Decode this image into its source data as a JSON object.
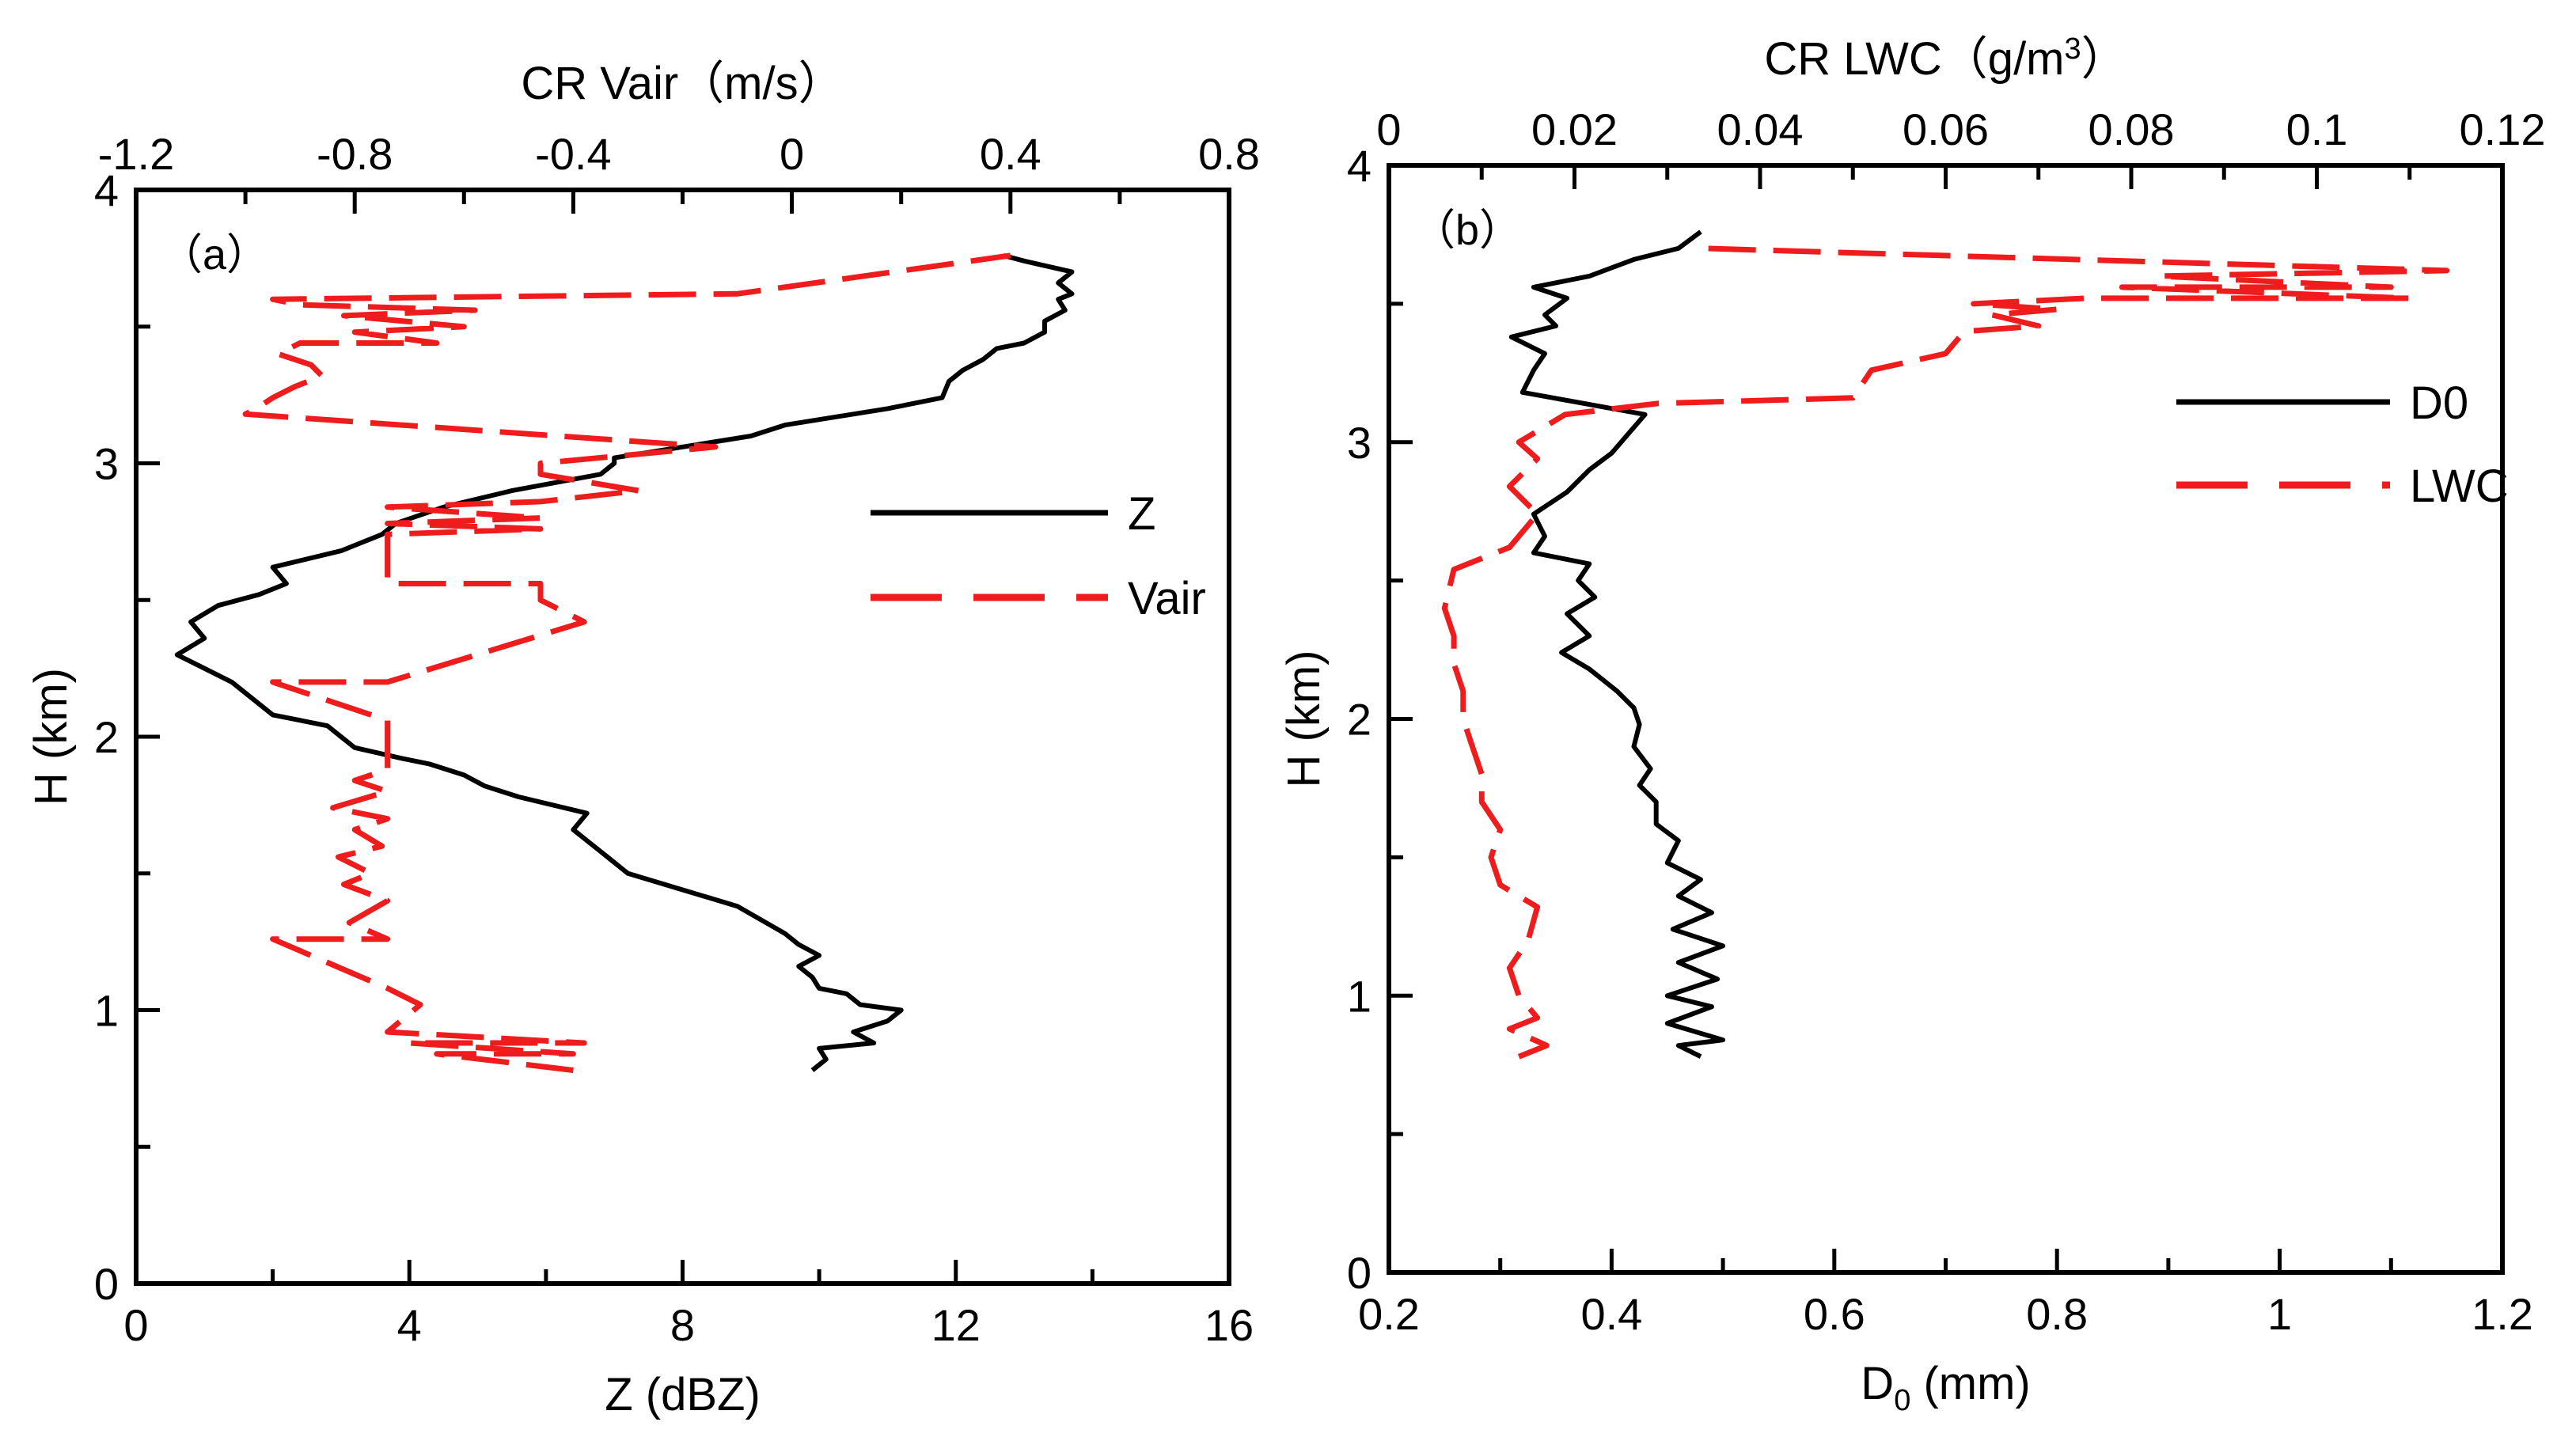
{
  "figure": {
    "panels": 2
  },
  "chart_data": [
    {
      "type": "line",
      "panel_label": "（a）",
      "ylabel": "H (km)",
      "ylim": [
        0,
        4
      ],
      "yticks": [
        "0",
        "1",
        "2",
        "3",
        "4"
      ],
      "bottom_axis": {
        "label": "Z (dBZ)",
        "lim": [
          0,
          16
        ],
        "ticks": [
          "0",
          "4",
          "8",
          "12",
          "16"
        ]
      },
      "top_axis": {
        "label": "CR  Vair（m/s）",
        "lim": [
          -1.2,
          0.8
        ],
        "ticks": [
          "-1.2",
          "-0.8",
          "-0.4",
          "0",
          "0.4",
          "0.8"
        ]
      },
      "legend": {
        "position": "right-middle"
      },
      "series": [
        {
          "name": "Z",
          "axis": "bottom",
          "color": "#000000",
          "style": "solid",
          "x": [
            9.9,
            10.1,
            10.0,
            10.8,
            10.5,
            11.0,
            11.2,
            10.6,
            10.4,
            10.0,
            9.9,
            9.7,
            10.0,
            9.7,
            9.5,
            8.8,
            7.2,
            6.9,
            6.6,
            6.4,
            6.6,
            5.6,
            5.1,
            4.8,
            4.3,
            3.9,
            3.2,
            3.0,
            2.8,
            2.0,
            1.7,
            1.4,
            0.6,
            1.0,
            0.8,
            1.2,
            1.8,
            2.2,
            2.0,
            3.0,
            3.6,
            3.8,
            4.5,
            5.5,
            6.8,
            7.0,
            7.0,
            8.0,
            9.0,
            9.5,
            11.0,
            11.8,
            11.9,
            12.1,
            12.4,
            12.6,
            13.0,
            13.3,
            13.3,
            13.6,
            13.5,
            13.7,
            13.5,
            13.7,
            13.0,
            12.7
          ],
          "y": [
            0.78,
            0.82,
            0.86,
            0.88,
            0.92,
            0.96,
            1.0,
            1.02,
            1.06,
            1.08,
            1.12,
            1.16,
            1.2,
            1.24,
            1.28,
            1.38,
            1.5,
            1.56,
            1.62,
            1.66,
            1.72,
            1.78,
            1.82,
            1.86,
            1.9,
            1.92,
            1.96,
            2.0,
            2.04,
            2.08,
            2.14,
            2.2,
            2.3,
            2.36,
            2.42,
            2.48,
            2.52,
            2.56,
            2.62,
            2.68,
            2.74,
            2.78,
            2.84,
            2.9,
            2.96,
            3.0,
            3.02,
            3.06,
            3.1,
            3.14,
            3.2,
            3.24,
            3.3,
            3.34,
            3.38,
            3.42,
            3.44,
            3.48,
            3.52,
            3.56,
            3.6,
            3.62,
            3.66,
            3.7,
            3.74,
            3.76
          ]
        },
        {
          "name": "Vair",
          "axis": "top",
          "color": "#ee1c1c",
          "style": "dashed",
          "x": [
            -0.4,
            -0.65,
            -0.4,
            -0.7,
            -0.38,
            -0.74,
            -0.68,
            -0.74,
            -0.95,
            -0.74,
            -0.81,
            -0.74,
            -0.82,
            -0.77,
            -0.83,
            -0.75,
            -0.8,
            -0.74,
            -0.84,
            -0.74,
            -0.8,
            -0.74,
            -0.74,
            -0.95,
            -0.74,
            -0.38,
            -0.46,
            -0.46,
            -0.74,
            -0.74,
            -0.46,
            -0.74,
            -0.46,
            -0.74,
            -0.46,
            -0.28,
            -0.46,
            -0.46,
            -0.14,
            -1.0,
            -0.98,
            -0.95,
            -0.91,
            -0.86,
            -0.88,
            -0.94,
            -0.9,
            -0.65,
            -0.8,
            -0.6,
            -0.82,
            -0.58,
            -0.9,
            -0.95,
            -0.1,
            0.4
          ],
          "y": [
            0.78,
            0.84,
            0.84,
            0.88,
            0.88,
            0.92,
            1.02,
            1.08,
            1.26,
            1.26,
            1.32,
            1.4,
            1.46,
            1.5,
            1.56,
            1.6,
            1.66,
            1.7,
            1.74,
            1.8,
            1.84,
            1.88,
            2.06,
            2.2,
            2.2,
            2.42,
            2.5,
            2.56,
            2.56,
            2.74,
            2.76,
            2.78,
            2.8,
            2.84,
            2.86,
            2.9,
            2.96,
            3.0,
            3.06,
            3.18,
            3.2,
            3.24,
            3.28,
            3.32,
            3.36,
            3.4,
            3.44,
            3.44,
            3.48,
            3.5,
            3.54,
            3.56,
            3.58,
            3.6,
            3.62,
            3.76
          ]
        }
      ]
    },
    {
      "type": "line",
      "panel_label": "（b）",
      "ylabel": "H (km)",
      "ylim": [
        0,
        4
      ],
      "yticks": [
        "0",
        "1",
        "2",
        "3",
        "4"
      ],
      "bottom_axis": {
        "label_main": "D",
        "label_sub": "0",
        "label_rest": " (mm)",
        "lim": [
          0.2,
          1.2
        ],
        "ticks": [
          "0.2",
          "0.4",
          "0.6",
          "0.8",
          "1",
          "1.2"
        ]
      },
      "top_axis": {
        "label_main": "CR  LWC（g/m",
        "label_sup": "3",
        "label_end": "）",
        "lim": [
          0,
          0.12
        ],
        "ticks": [
          "0",
          "0.02",
          "0.04",
          "0.06",
          "0.08",
          "0.1",
          "0.12"
        ]
      },
      "legend": {
        "position": "top-right"
      },
      "series": [
        {
          "name": "D0",
          "axis": "bottom",
          "color": "#000000",
          "style": "solid",
          "x": [
            0.48,
            0.46,
            0.5,
            0.45,
            0.49,
            0.45,
            0.495,
            0.46,
            0.5,
            0.455,
            0.49,
            0.46,
            0.48,
            0.45,
            0.46,
            0.44,
            0.44,
            0.425,
            0.435,
            0.42,
            0.425,
            0.42,
            0.405,
            0.38,
            0.355,
            0.38,
            0.36,
            0.385,
            0.37,
            0.38,
            0.33,
            0.34,
            0.33,
            0.36,
            0.38,
            0.4,
            0.43,
            0.32,
            0.33,
            0.34,
            0.31,
            0.35,
            0.34,
            0.36,
            0.33,
            0.38,
            0.42,
            0.46,
            0.48
          ],
          "y": [
            0.78,
            0.82,
            0.84,
            0.9,
            0.96,
            1.0,
            1.06,
            1.12,
            1.18,
            1.24,
            1.3,
            1.36,
            1.42,
            1.48,
            1.56,
            1.62,
            1.7,
            1.76,
            1.82,
            1.9,
            1.98,
            2.04,
            2.1,
            2.18,
            2.24,
            2.3,
            2.38,
            2.44,
            2.5,
            2.56,
            2.6,
            2.66,
            2.74,
            2.82,
            2.9,
            2.96,
            3.1,
            3.18,
            3.26,
            3.32,
            3.38,
            3.42,
            3.46,
            3.52,
            3.56,
            3.6,
            3.66,
            3.7,
            3.76
          ]
        },
        {
          "name": "LWC",
          "axis": "top",
          "color": "#ee1c1c",
          "style": "dashed",
          "x": [
            0.014,
            0.017,
            0.013,
            0.016,
            0.014,
            0.013,
            0.015,
            0.016,
            0.012,
            0.011,
            0.012,
            0.01,
            0.01,
            0.009,
            0.008,
            0.008,
            0.007,
            0.007,
            0.006,
            0.007,
            0.013,
            0.016,
            0.013,
            0.016,
            0.014,
            0.019,
            0.029,
            0.05,
            0.052,
            0.06,
            0.062,
            0.07,
            0.065,
            0.072,
            0.063,
            0.075,
            0.11,
            0.079,
            0.108,
            0.083,
            0.114,
            0.034
          ],
          "y": [
            0.78,
            0.82,
            0.88,
            0.92,
            1.0,
            1.1,
            1.2,
            1.32,
            1.4,
            1.5,
            1.6,
            1.7,
            1.8,
            1.9,
            2.0,
            2.1,
            2.2,
            2.3,
            2.4,
            2.54,
            2.62,
            2.74,
            2.84,
            2.94,
            3.0,
            3.1,
            3.14,
            3.16,
            3.26,
            3.32,
            3.4,
            3.42,
            3.46,
            3.48,
            3.5,
            3.52,
            3.52,
            3.56,
            3.56,
            3.6,
            3.62,
            3.7
          ]
        }
      ]
    }
  ]
}
